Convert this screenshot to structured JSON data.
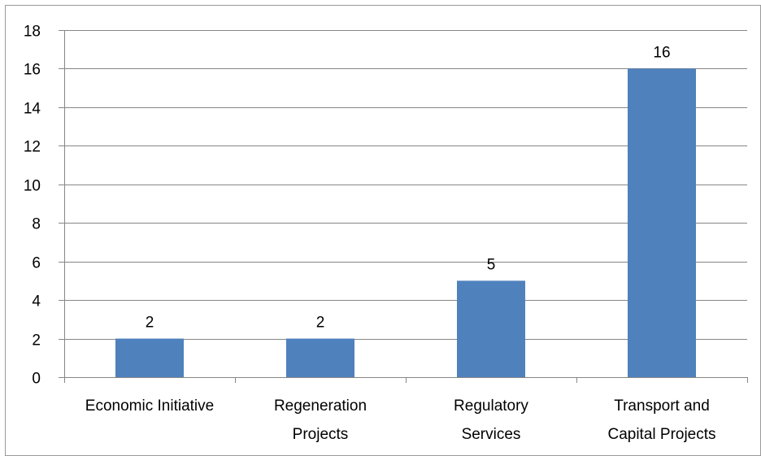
{
  "chart_data": {
    "type": "bar",
    "title": "",
    "xlabel": "",
    "ylabel": "",
    "categories": [
      "Economic Initiative",
      "Regeneration Projects",
      "Regulatory Services",
      "Transport and Capital Projects"
    ],
    "category_lines": [
      [
        "Economic Initiative"
      ],
      [
        "Regeneration",
        "Projects"
      ],
      [
        "Regulatory",
        "Services"
      ],
      [
        "Transport and",
        "Capital Projects"
      ]
    ],
    "values": [
      2,
      2,
      5,
      16
    ],
    "data_labels": [
      "2",
      "2",
      "5",
      "16"
    ],
    "ylim": [
      0,
      18
    ],
    "y_ticks": [
      0,
      2,
      4,
      6,
      8,
      10,
      12,
      14,
      16,
      18
    ],
    "grid": true,
    "legend": "none",
    "colors": {
      "bar": "#4f81bd",
      "grid": "#868686",
      "axis": "#868686",
      "frame": "#9a9a9a"
    }
  }
}
